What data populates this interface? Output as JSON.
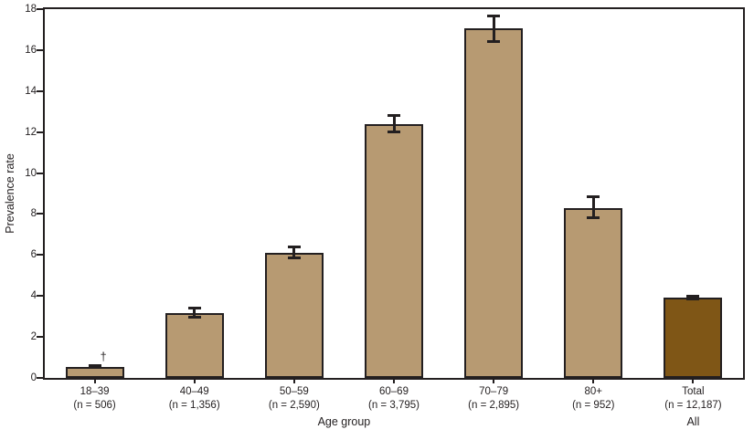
{
  "chart_data": {
    "type": "bar",
    "ylabel": "Prevalence rate",
    "xlabel": "Age group",
    "all_axis_label": "All",
    "ylim": [
      0,
      18
    ],
    "yticks": [
      0,
      2,
      4,
      6,
      8,
      10,
      12,
      14,
      16,
      18
    ],
    "grid": false,
    "categories": [
      "18–39",
      "40–49",
      "50–59",
      "60–69",
      "70–79",
      "80+",
      "Total"
    ],
    "n_labels": [
      "(n = 506)",
      "(n = 1,356)",
      "(n = 2,590)",
      "(n = 3,795)",
      "(n = 2,895)",
      "(n = 952)",
      "(n = 12,187)"
    ],
    "values": [
      0.55,
      3.15,
      6.1,
      12.4,
      17.05,
      8.3,
      3.9
    ],
    "ci_low": [
      0.5,
      2.95,
      5.85,
      12.0,
      16.4,
      7.8,
      3.85
    ],
    "ci_high": [
      0.62,
      3.4,
      6.4,
      12.8,
      17.65,
      8.85,
      4.0
    ],
    "footnote_marker": "†",
    "footnote_marker_index": 0,
    "total_category": "Total",
    "colors": {
      "bar": "#b79a72",
      "total_bar": "#7f5616",
      "axis": "#231f20"
    }
  }
}
